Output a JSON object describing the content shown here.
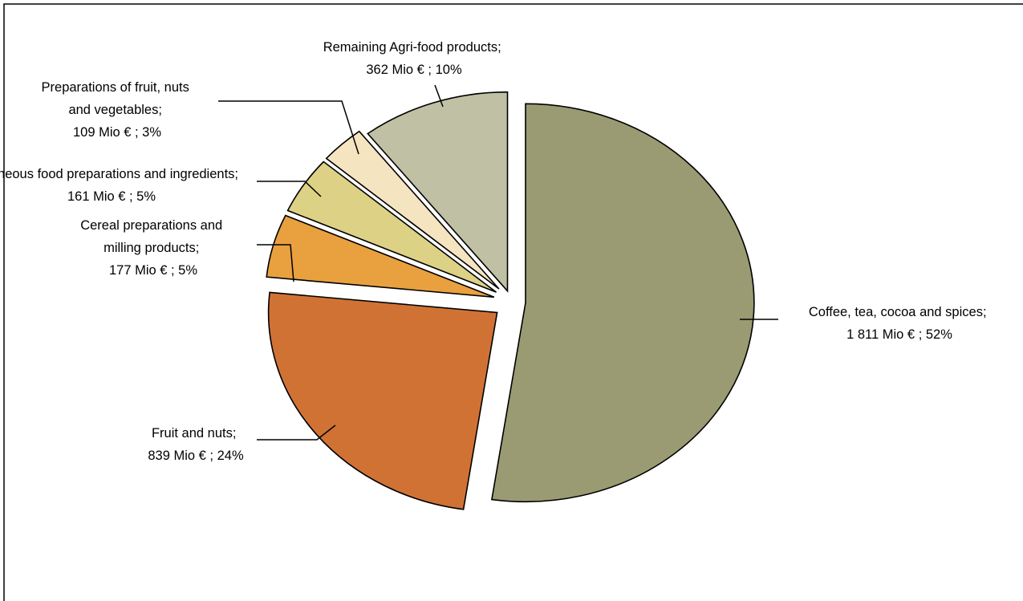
{
  "chart_data": {
    "type": "pie",
    "unit": "Mio €",
    "slices": [
      {
        "name": "Coffee, tea, cocoa and spices",
        "label_line1": "Coffee, tea, cocoa and spices;",
        "label_line2": "1 811 Mio € ; 52%",
        "value": 1811,
        "percent": 52,
        "color": "#9a9b73"
      },
      {
        "name": "Fruit and nuts",
        "label_line1": "Fruit and nuts;",
        "label_line2": "839 Mio € ; 24%",
        "value": 839,
        "percent": 24,
        "color": "#d17235"
      },
      {
        "name": "Cereal preparations and milling products",
        "label_line1": "Cereal preparations and",
        "label_line2": "milling products;",
        "label_line3": "177 Mio € ; 5%",
        "value": 177,
        "percent": 5,
        "color": "#e9a03f"
      },
      {
        "name": "Miscellaneous food preparations and ingredients",
        "label_line1": "Miscellaneous food preparations and ingredients;",
        "label_line2": "161 Mio € ; 5%",
        "value": 161,
        "percent": 5,
        "color": "#ddd185"
      },
      {
        "name": "Preparations of fruit, nuts and vegetables",
        "label_line1": "Preparations of fruit, nuts",
        "label_line2": "and vegetables;",
        "label_line3": "109 Mio € ; 3%",
        "value": 109,
        "percent": 3,
        "color": "#f4e4c0"
      },
      {
        "name": "Remaining Agri-food products",
        "label_line1": "Remaining Agri-food products;",
        "label_line2": "362 Mio € ; 10%",
        "value": 362,
        "percent": 10,
        "color": "#c0c0a5"
      }
    ]
  }
}
